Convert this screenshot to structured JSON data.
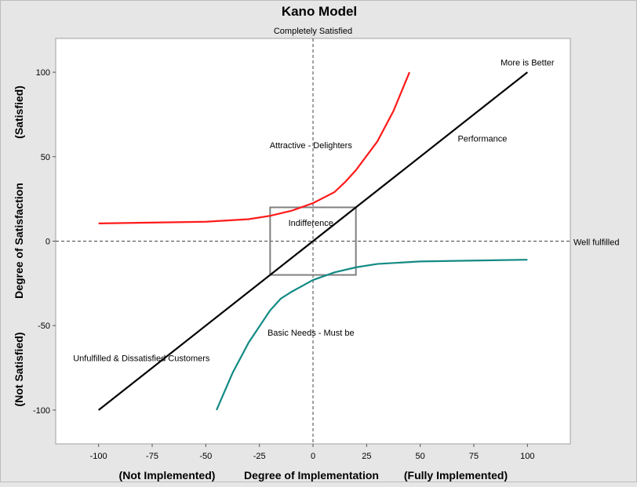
{
  "chart_data": {
    "type": "line",
    "title": "Kano Model",
    "subtitle": "Completely Satisfied",
    "xlabel": "Degree of Implementation",
    "xlabel_left": "(Not Implemented)",
    "xlabel_right": "(Fully Implemented)",
    "ylabel": "Degree of Satisfaction",
    "ylabel_top": "(Satisfied)",
    "ylabel_bottom": "(Not Satisfied)",
    "xlim": [
      -120,
      120
    ],
    "ylim": [
      -120,
      120
    ],
    "xticks": [
      -100,
      -75,
      -50,
      -25,
      0,
      25,
      50,
      75,
      100
    ],
    "yticks": [
      -100,
      -50,
      0,
      50,
      100
    ],
    "reference_lines": {
      "x": 0,
      "y": 0,
      "y_label": "Well fulfilled"
    },
    "box": {
      "x": [
        -20,
        20
      ],
      "y": [
        -20,
        20
      ],
      "color": "#808080"
    },
    "series": [
      {
        "name": "Attractive",
        "color": "#ff1a1a",
        "x": [
          -100,
          -50,
          -30,
          -20,
          -10,
          0,
          10,
          15,
          20,
          30,
          37.5,
          45
        ],
        "y": [
          10.5,
          11.5,
          13,
          15,
          18,
          22.5,
          29,
          35,
          42,
          59,
          77,
          100
        ]
      },
      {
        "name": "Performance",
        "color": "#000000",
        "x": [
          -100,
          100
        ],
        "y": [
          -100,
          100
        ]
      },
      {
        "name": "Basic Needs",
        "color": "#138a84",
        "x": [
          -45,
          -37.5,
          -30,
          -20,
          -15,
          -10,
          0,
          10,
          20,
          30,
          50,
          100
        ],
        "y": [
          -100,
          -78,
          -60,
          -41,
          -34,
          -30,
          -23,
          -18.5,
          -15.5,
          -13.5,
          -12,
          -11
        ]
      }
    ],
    "annotations": [
      {
        "text": "More is Better",
        "x": 100,
        "y": 104
      },
      {
        "text": "Performance",
        "x": 79,
        "y": 59
      },
      {
        "text": "Attractive - Delighters",
        "x": -1,
        "y": 55
      },
      {
        "text": "Indifference",
        "x": -1,
        "y": 9
      },
      {
        "text": "Basic Needs - Must be",
        "x": -1,
        "y": -56
      },
      {
        "text": "Unfulfilled & Dissatisfied Customers",
        "x": -80,
        "y": -71
      }
    ]
  }
}
